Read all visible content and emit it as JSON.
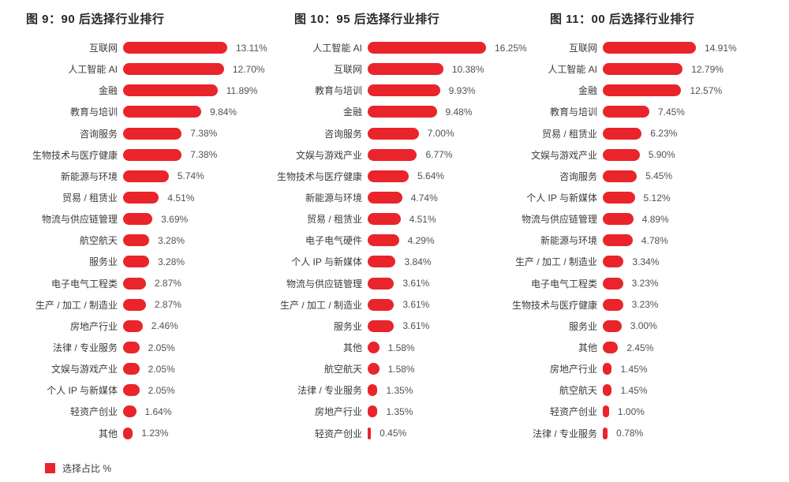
{
  "legend": {
    "label": "选择占比 %",
    "color": "#E9242B"
  },
  "colors": {
    "bar": "#E9242B",
    "title": "#28282b",
    "category": "#3b3b3d",
    "value": "#515155",
    "background": "#ffffff"
  },
  "chart_data": [
    {
      "type": "bar",
      "orientation": "horizontal",
      "title": "图 9：90 后选择行业排行",
      "unit": "%",
      "series_name": "选择占比 %",
      "legend_position": "bottom-left",
      "grid": false,
      "xlim": [
        0,
        13.11
      ],
      "categories": [
        "互联网",
        "人工智能 AI",
        "金融",
        "教育与培训",
        "咨询服务",
        "生物技术与医疗健康",
        "新能源与环境",
        "贸易 / 租赁业",
        "物流与供应链管理",
        "航空航天",
        "服务业",
        "电子电气工程类",
        "生产 / 加工 / 制造业",
        "房地产行业",
        "法律 / 专业服务",
        "文娱与游戏产业",
        "个人 IP 与新媒体",
        "轻资产创业",
        "其他"
      ],
      "values": [
        13.11,
        12.7,
        11.89,
        9.84,
        7.38,
        7.38,
        5.74,
        4.51,
        3.69,
        3.28,
        3.28,
        2.87,
        2.87,
        2.46,
        2.05,
        2.05,
        2.05,
        1.64,
        1.23
      ],
      "value_labels": [
        "13.11%",
        "12.70%",
        "11.89%",
        "9.84%",
        "7.38%",
        "7.38%",
        "5.74%",
        "4.51%",
        "3.69%",
        "3.28%",
        "3.28%",
        "2.87%",
        "2.87%",
        "2.46%",
        "2.05%",
        "2.05%",
        "2.05%",
        "1.64%",
        "1.23%"
      ]
    },
    {
      "type": "bar",
      "orientation": "horizontal",
      "title": "图 10：95 后选择行业排行",
      "unit": "%",
      "series_name": "选择占比 %",
      "legend_position": "bottom-left",
      "grid": false,
      "xlim": [
        0,
        16.25
      ],
      "categories": [
        "人工智能 AI",
        "互联网",
        "教育与培训",
        "金融",
        "咨询服务",
        "文娱与游戏产业",
        "生物技术与医疗健康",
        "新能源与环境",
        "贸易 / 租赁业",
        "电子电气硬件",
        "个人 IP 与新媒体",
        "物流与供应链管理",
        "生产 / 加工 / 制造业",
        "服务业",
        "其他",
        "航空航天",
        "法律 / 专业服务",
        "房地产行业",
        "轻资产创业"
      ],
      "values": [
        16.25,
        10.38,
        9.93,
        9.48,
        7.0,
        6.77,
        5.64,
        4.74,
        4.51,
        4.29,
        3.84,
        3.61,
        3.61,
        3.61,
        1.58,
        1.58,
        1.35,
        1.35,
        0.45
      ],
      "value_labels": [
        "16.25%",
        "10.38%",
        "9.93%",
        "9.48%",
        "7.00%",
        "6.77%",
        "5.64%",
        "4.74%",
        "4.51%",
        "4.29%",
        "3.84%",
        "3.61%",
        "3.61%",
        "3.61%",
        "1.58%",
        "1.58%",
        "1.35%",
        "1.35%",
        "0.45%"
      ]
    },
    {
      "type": "bar",
      "orientation": "horizontal",
      "title": "图 11：00 后选择行业排行",
      "unit": "%",
      "series_name": "选择占比 %",
      "legend_position": "bottom-left",
      "grid": false,
      "xlim": [
        0,
        14.91
      ],
      "categories": [
        "互联网",
        "人工智能 AI",
        "金融",
        "教育与培训",
        "贸易 / 租赁业",
        "文娱与游戏产业",
        "咨询服务",
        "个人 IP 与新媒体",
        "物流与供应链管理",
        "新能源与环境",
        "生产 / 加工 / 制造业",
        "电子电气工程类",
        "生物技术与医疗健康",
        "服务业",
        "其他",
        "房地产行业",
        "航空航天",
        "轻资产创业",
        "法律 / 专业服务"
      ],
      "values": [
        14.91,
        12.79,
        12.57,
        7.45,
        6.23,
        5.9,
        5.45,
        5.12,
        4.89,
        4.78,
        3.34,
        3.23,
        3.23,
        3.0,
        2.45,
        1.45,
        1.45,
        1.0,
        0.78
      ],
      "value_labels": [
        "14.91%",
        "12.79%",
        "12.57%",
        "7.45%",
        "6.23%",
        "5.90%",
        "5.45%",
        "5.12%",
        "4.89%",
        "4.78%",
        "3.34%",
        "3.23%",
        "3.23%",
        "3.00%",
        "2.45%",
        "1.45%",
        "1.45%",
        "1.00%",
        "0.78%"
      ]
    }
  ]
}
